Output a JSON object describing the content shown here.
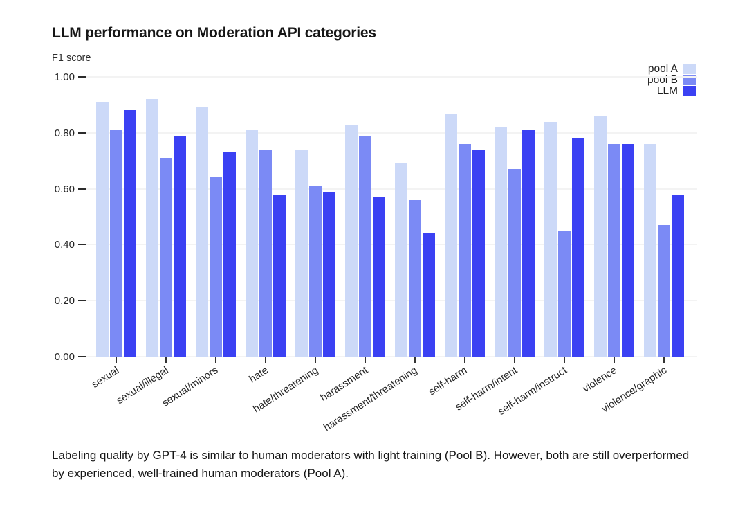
{
  "caption": "Labeling quality by GPT-4 is similar to human moderators with light training (Pool B). However, both are still overperformed by experienced, well-trained human moderators (Pool A).",
  "chart_data": {
    "type": "bar",
    "title": "LLM performance on Moderation API categories",
    "ylabel": "F1 score",
    "xlabel": "",
    "ylim": [
      0,
      1.0
    ],
    "yticks": [
      "0.00",
      "0.20",
      "0.40",
      "0.60",
      "0.80",
      "1.00"
    ],
    "grid": true,
    "legend_position": "top-right",
    "categories": [
      "sexual",
      "sexual/illegal",
      "sexual/minors",
      "hate",
      "hate/threatening",
      "harassment",
      "harassment/threatening",
      "self-harm",
      "self-harm/intent",
      "self-harm/instruct",
      "violence",
      "violence/graphic"
    ],
    "series": [
      {
        "name": "pool A",
        "color": "#ccd9f8",
        "values": [
          0.91,
          0.92,
          0.89,
          0.81,
          0.74,
          0.83,
          0.69,
          0.87,
          0.82,
          0.84,
          0.86,
          0.76
        ]
      },
      {
        "name": "pool B",
        "color": "#7b8af5",
        "values": [
          0.81,
          0.71,
          0.64,
          0.74,
          0.61,
          0.79,
          0.56,
          0.76,
          0.67,
          0.45,
          0.76,
          0.47
        ]
      },
      {
        "name": "LLM",
        "color": "#3b41f3",
        "values": [
          0.88,
          0.79,
          0.73,
          0.58,
          0.59,
          0.57,
          0.44,
          0.74,
          0.81,
          0.78,
          0.76,
          0.58
        ]
      }
    ]
  }
}
